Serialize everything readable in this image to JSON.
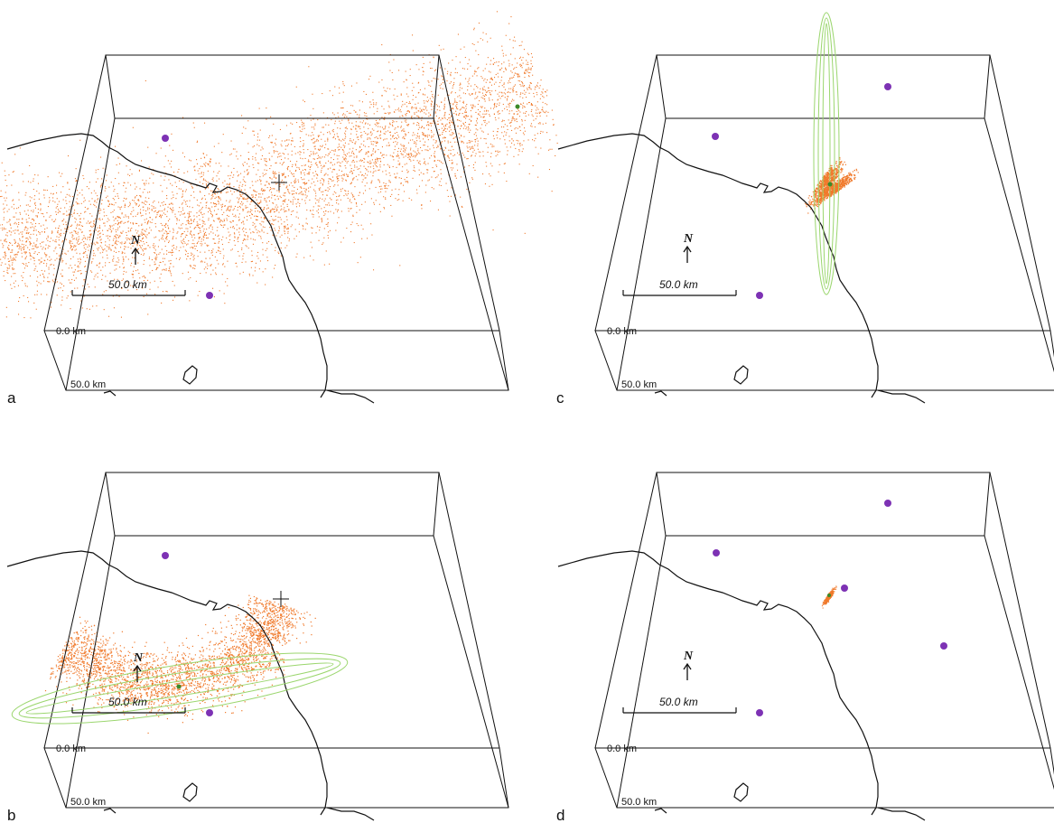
{
  "figure": {
    "panels": [
      {
        "id": "a",
        "letter": "a",
        "scale_text": "50.0 km",
        "depth_top": "0.0 km",
        "depth_bottom": "50.0 km",
        "north": "N",
        "cloud": "wide-band",
        "error_ellipse": "none"
      },
      {
        "id": "b",
        "letter": "b",
        "scale_text": "50.0 km",
        "depth_top": "0.0 km",
        "depth_bottom": "50.0 km",
        "north": "N",
        "cloud": "arc",
        "error_ellipse": "horizontal"
      },
      {
        "id": "c",
        "letter": "c",
        "scale_text": "50.0 km",
        "depth_top": "0.0 km",
        "depth_bottom": "50.0 km",
        "north": "N",
        "cloud": "blob",
        "error_ellipse": "vertical"
      },
      {
        "id": "d",
        "letter": "d",
        "scale_text": "50.0 km",
        "depth_top": "0.0 km",
        "depth_bottom": "50.0 km",
        "north": "N",
        "cloud": "small-blob",
        "error_ellipse": "none"
      }
    ]
  },
  "colors": {
    "cloud": "#f07a2c",
    "station": "#7d32b4",
    "ellipse": "#9bd66e",
    "hypocenter": "#3a8a2a",
    "lines": "#111111"
  }
}
